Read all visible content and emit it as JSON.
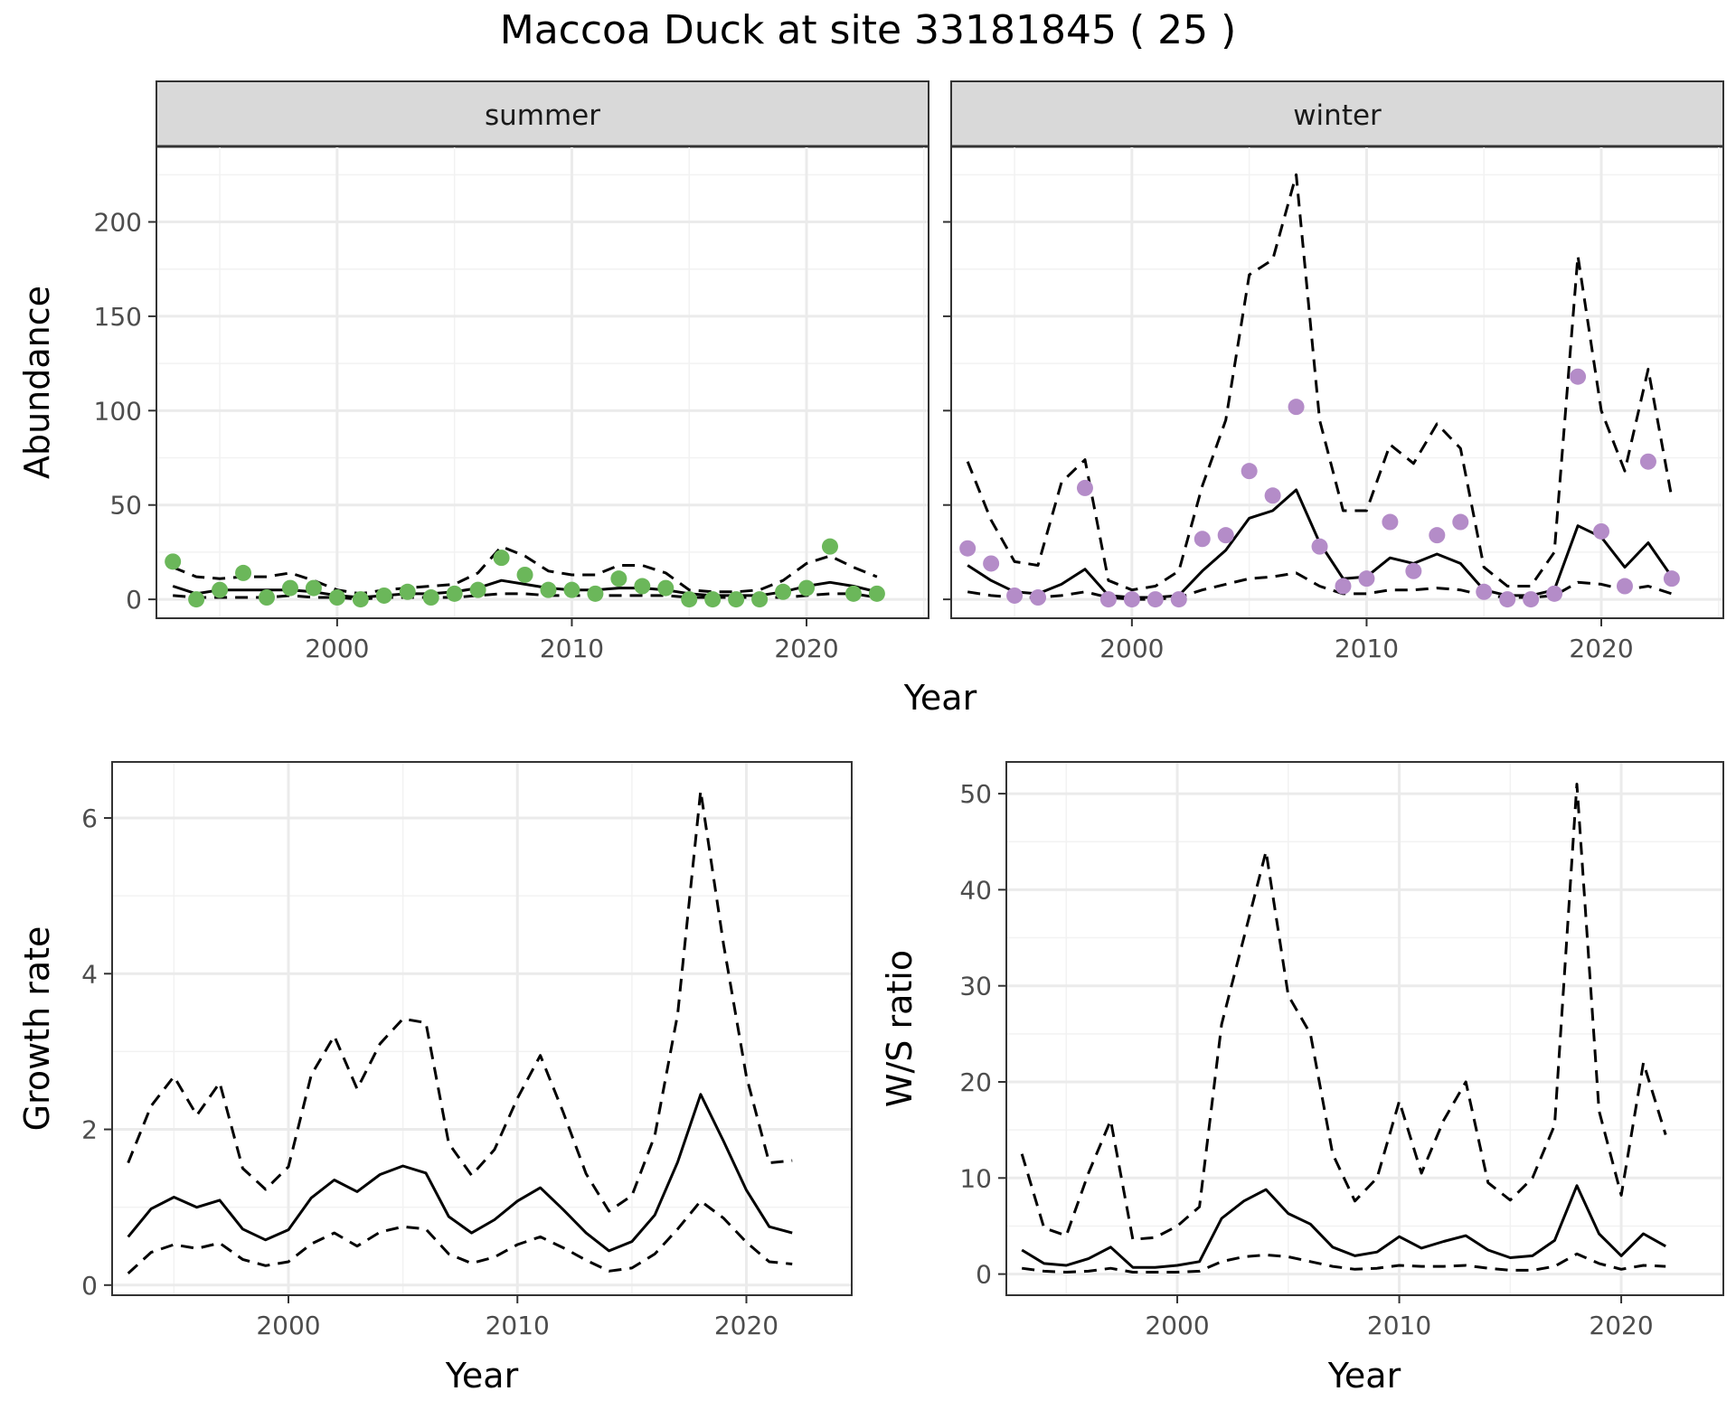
{
  "figure": {
    "title": "Maccoa Duck at site 33181845 ( 25 )",
    "colors": {
      "summer_points": "#6bb75a",
      "winter_points": "#b48cc8",
      "lines": "#000000"
    }
  },
  "chart_data": [
    {
      "type": "line",
      "facet": "summer",
      "strip_label": "summer",
      "xlabel": "Year",
      "ylabel": "Abundance",
      "xlim": [
        1992.3,
        2025.2
      ],
      "ylim": [
        -10,
        240
      ],
      "xticks": [
        2000,
        2010,
        2020
      ],
      "yticks": [
        0,
        50,
        100,
        150,
        200
      ],
      "grid": true,
      "x": [
        1993,
        1994,
        1995,
        1996,
        1997,
        1998,
        1999,
        2000,
        2001,
        2002,
        2003,
        2004,
        2005,
        2006,
        2007,
        2008,
        2009,
        2010,
        2011,
        2012,
        2013,
        2014,
        2015,
        2016,
        2017,
        2018,
        2019,
        2020,
        2021,
        2022,
        2023
      ],
      "points": [
        20,
        0,
        5,
        14,
        1,
        6,
        6,
        1,
        0,
        2,
        4,
        1,
        3,
        5,
        22,
        13,
        5,
        5,
        3,
        11,
        7,
        6,
        0,
        0,
        0,
        0,
        4,
        6,
        28,
        3,
        3
      ],
      "series": [
        {
          "role": "estimate",
          "style": "solid",
          "values": [
            7,
            3,
            5,
            5,
            5,
            5,
            4,
            2,
            1,
            2,
            3,
            3,
            4,
            6,
            10,
            8,
            6,
            5,
            5,
            6,
            6,
            5,
            3,
            2,
            2,
            2,
            4,
            7,
            9,
            7,
            4
          ]
        },
        {
          "role": "upper",
          "style": "dashed",
          "values": [
            17,
            12,
            11,
            12,
            12,
            14,
            10,
            5,
            3,
            5,
            6,
            7,
            8,
            14,
            28,
            23,
            15,
            13,
            13,
            18,
            18,
            14,
            5,
            4,
            4,
            5,
            10,
            19,
            23,
            17,
            12
          ]
        },
        {
          "role": "lower",
          "style": "dashed",
          "values": [
            2,
            1,
            1,
            1,
            1,
            2,
            1,
            1,
            0,
            1,
            1,
            1,
            1,
            2,
            3,
            3,
            2,
            2,
            2,
            2,
            2,
            2,
            1,
            1,
            1,
            1,
            1,
            2,
            3,
            3,
            1
          ]
        }
      ]
    },
    {
      "type": "line",
      "facet": "winter",
      "strip_label": "winter",
      "xlabel": "Year",
      "ylabel": "Abundance",
      "xlim": [
        1992.3,
        2025.2
      ],
      "ylim": [
        -10,
        240
      ],
      "xticks": [
        2000,
        2010,
        2020
      ],
      "yticks": [
        0,
        50,
        100,
        150,
        200
      ],
      "grid": true,
      "x": [
        1993,
        1994,
        1995,
        1996,
        1997,
        1998,
        1999,
        2000,
        2001,
        2002,
        2003,
        2004,
        2005,
        2006,
        2007,
        2008,
        2009,
        2010,
        2011,
        2012,
        2013,
        2014,
        2015,
        2016,
        2017,
        2018,
        2019,
        2020,
        2021,
        2022,
        2023
      ],
      "points": [
        27,
        19,
        2,
        1,
        null,
        59,
        0,
        0,
        0,
        0,
        32,
        34,
        68,
        55,
        102,
        28,
        7,
        11,
        41,
        15,
        34,
        41,
        4,
        0,
        0,
        3,
        118,
        36,
        7,
        73,
        11
      ],
      "series": [
        {
          "role": "estimate",
          "style": "solid",
          "values": [
            18,
            10,
            4,
            3,
            8,
            16,
            2,
            1,
            1,
            2,
            15,
            26,
            43,
            47,
            58,
            30,
            11,
            12,
            22,
            19,
            24,
            19,
            5,
            2,
            2,
            5,
            39,
            33,
            17,
            30,
            12
          ]
        },
        {
          "role": "upper",
          "style": "dashed",
          "values": [
            73,
            42,
            20,
            18,
            62,
            74,
            10,
            5,
            7,
            15,
            60,
            95,
            172,
            180,
            225,
            95,
            47,
            47,
            82,
            72,
            93,
            80,
            17,
            7,
            7,
            25,
            182,
            100,
            68,
            122,
            54
          ]
        },
        {
          "role": "lower",
          "style": "dashed",
          "values": [
            4,
            2,
            1,
            1,
            2,
            4,
            1,
            0,
            0,
            1,
            5,
            8,
            11,
            12,
            14,
            7,
            3,
            3,
            5,
            5,
            6,
            5,
            2,
            1,
            1,
            2,
            9,
            8,
            5,
            7,
            3
          ]
        }
      ]
    },
    {
      "type": "line",
      "facet": "growth",
      "xlabel": "Year",
      "ylabel": "Growth rate",
      "xlim": [
        1992.3,
        2024.6
      ],
      "ylim": [
        -0.13,
        6.72
      ],
      "xticks": [
        2000,
        2010,
        2020
      ],
      "yticks": [
        0,
        2,
        4,
        6
      ],
      "grid": true,
      "x": [
        1993,
        1994,
        1995,
        1996,
        1997,
        1998,
        1999,
        2000,
        2001,
        2002,
        2003,
        2004,
        2005,
        2006,
        2007,
        2008,
        2009,
        2010,
        2011,
        2012,
        2013,
        2014,
        2015,
        2016,
        2017,
        2018,
        2019,
        2020,
        2021,
        2022
      ],
      "series": [
        {
          "role": "estimate",
          "style": "solid",
          "values": [
            0.62,
            0.98,
            1.13,
            1.0,
            1.09,
            0.72,
            0.58,
            0.71,
            1.12,
            1.35,
            1.2,
            1.42,
            1.53,
            1.44,
            0.88,
            0.67,
            0.84,
            1.08,
            1.25,
            0.97,
            0.67,
            0.44,
            0.56,
            0.9,
            1.58,
            2.45,
            1.85,
            1.22,
            0.75,
            0.67
          ]
        },
        {
          "role": "upper",
          "style": "dashed",
          "values": [
            1.57,
            2.3,
            2.68,
            2.18,
            2.6,
            1.5,
            1.23,
            1.52,
            2.7,
            3.2,
            2.52,
            3.1,
            3.42,
            3.37,
            1.82,
            1.41,
            1.74,
            2.4,
            2.95,
            2.22,
            1.43,
            0.95,
            1.15,
            1.92,
            3.48,
            6.35,
            4.38,
            2.68,
            1.57,
            1.6
          ]
        },
        {
          "role": "lower",
          "style": "dashed",
          "values": [
            0.15,
            0.42,
            0.52,
            0.47,
            0.54,
            0.33,
            0.25,
            0.3,
            0.53,
            0.67,
            0.5,
            0.68,
            0.75,
            0.72,
            0.4,
            0.28,
            0.36,
            0.52,
            0.62,
            0.48,
            0.32,
            0.18,
            0.22,
            0.4,
            0.72,
            1.08,
            0.86,
            0.55,
            0.3,
            0.27
          ]
        }
      ]
    },
    {
      "type": "line",
      "facet": "ratio",
      "xlabel": "Year",
      "ylabel": "W/S ratio",
      "xlim": [
        1992.3,
        2024.6
      ],
      "ylim": [
        -2.2,
        53.3
      ],
      "xticks": [
        2000,
        2010,
        2020
      ],
      "yticks": [
        0,
        10,
        20,
        30,
        40,
        50
      ],
      "grid": true,
      "x": [
        1993,
        1994,
        1995,
        1996,
        1997,
        1998,
        1999,
        2000,
        2001,
        2002,
        2003,
        2004,
        2005,
        2006,
        2007,
        2008,
        2009,
        2010,
        2011,
        2012,
        2013,
        2014,
        2015,
        2016,
        2017,
        2018,
        2019,
        2020,
        2021,
        2022
      ],
      "series": [
        {
          "role": "estimate",
          "style": "solid",
          "values": [
            2.5,
            1.1,
            0.9,
            1.6,
            2.8,
            0.7,
            0.7,
            0.9,
            1.3,
            5.8,
            7.6,
            8.8,
            6.3,
            5.2,
            2.8,
            1.9,
            2.3,
            3.9,
            2.7,
            3.4,
            4.0,
            2.5,
            1.7,
            1.9,
            3.5,
            9.2,
            4.2,
            1.9,
            4.2,
            2.9
          ]
        },
        {
          "role": "upper",
          "style": "dashed",
          "values": [
            12.5,
            4.8,
            4.0,
            10.5,
            16.0,
            3.6,
            3.8,
            5.0,
            7.0,
            26.0,
            35.0,
            44.0,
            29.0,
            25.0,
            12.5,
            7.6,
            10.0,
            18.0,
            10.5,
            16.0,
            20.0,
            9.5,
            7.7,
            10.0,
            15.5,
            51.0,
            17.0,
            8.2,
            22.0,
            14.5
          ]
        },
        {
          "role": "lower",
          "style": "dashed",
          "values": [
            0.6,
            0.3,
            0.2,
            0.3,
            0.6,
            0.2,
            0.2,
            0.2,
            0.3,
            1.3,
            1.8,
            2.0,
            1.8,
            1.3,
            0.8,
            0.5,
            0.6,
            0.9,
            0.8,
            0.8,
            0.9,
            0.6,
            0.4,
            0.4,
            0.8,
            2.1,
            1.1,
            0.5,
            0.9,
            0.8
          ]
        }
      ]
    }
  ]
}
